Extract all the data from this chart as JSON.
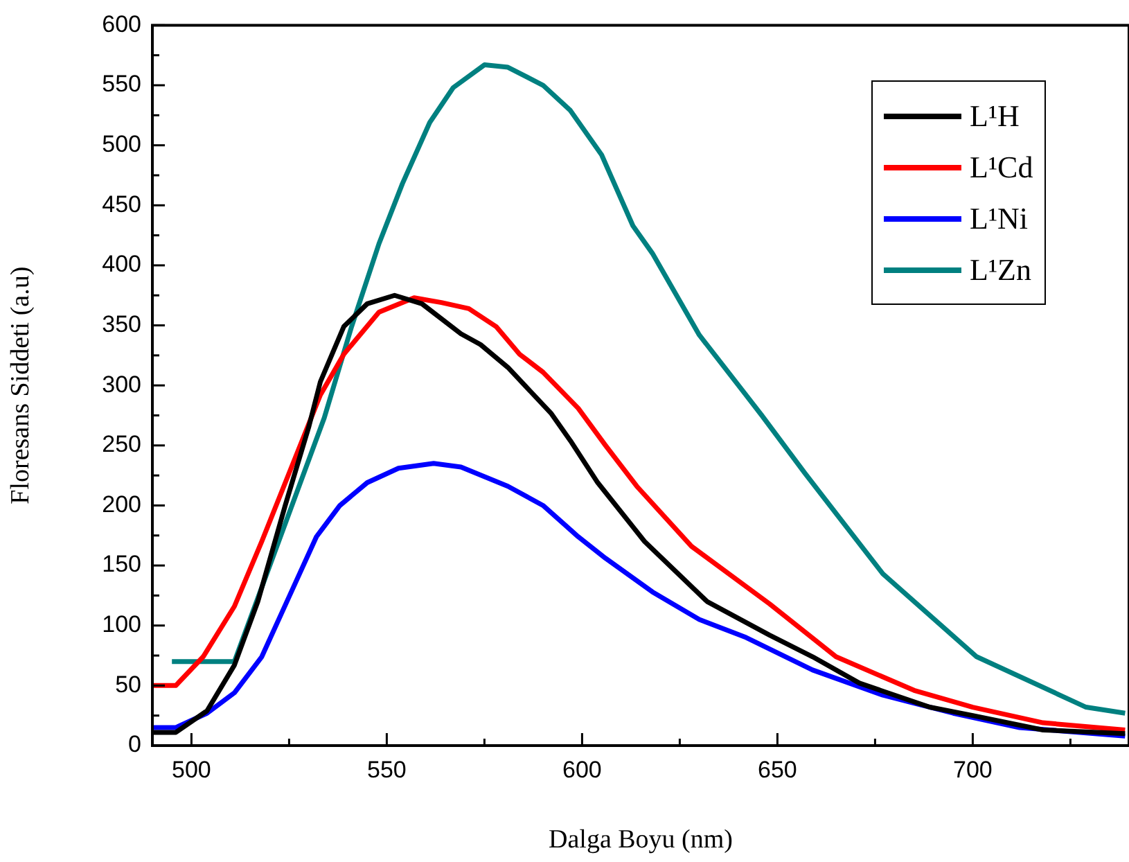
{
  "chart_data": {
    "type": "line",
    "xlabel": "Dalga Boyu (nm)",
    "ylabel": "Floresans Siddeti (a.u)",
    "xlim": [
      490,
      740
    ],
    "ylim": [
      0,
      600
    ],
    "xticks": [
      500,
      {
        "value": 525,
        "label": null
      },
      550,
      {
        "value": 575,
        "label": null
      },
      600,
      {
        "value": 625,
        "label": null
      },
      650,
      {
        "value": 675,
        "label": null
      },
      700,
      {
        "value": 725,
        "label": null
      }
    ],
    "yticks": [
      0,
      {
        "value": 25,
        "label": null
      },
      50,
      {
        "value": 75,
        "label": null
      },
      100,
      {
        "value": 125,
        "label": null
      },
      150,
      {
        "value": 175,
        "label": null
      },
      200,
      {
        "value": 225,
        "label": null
      },
      250,
      {
        "value": 275,
        "label": null
      },
      300,
      {
        "value": 325,
        "label": null
      },
      350,
      {
        "value": 375,
        "label": null
      },
      400,
      {
        "value": 425,
        "label": null
      },
      450,
      {
        "value": 475,
        "label": null
      },
      500,
      {
        "value": 525,
        "label": null
      },
      550,
      {
        "value": 575,
        "label": null
      },
      600
    ],
    "grid": false,
    "legend": "top right",
    "marker": "none",
    "line_style": "solid",
    "series": [
      {
        "name": "L¹H",
        "color": "#000000",
        "x": [
          490,
          496,
          504,
          511,
          517,
          524,
          530,
          533,
          539,
          545,
          552,
          559,
          569,
          574,
          581,
          592,
          597,
          604,
          616,
          632,
          648,
          659,
          671,
          689,
          700,
          718,
          739
        ],
        "values": [
          11,
          11,
          29,
          67,
          120,
          200,
          265,
          303,
          349,
          368,
          375,
          368,
          343,
          334,
          315,
          277,
          254,
          219,
          170,
          120,
          92,
          74,
          52,
          32,
          25,
          13,
          10
        ]
      },
      {
        "name": "L¹Cd",
        "color": "#ff0000",
        "x": [
          490,
          496,
          503,
          511,
          518,
          525,
          533,
          539,
          548,
          557,
          564,
          571,
          578,
          584,
          590,
          599,
          606,
          614,
          628,
          648,
          665,
          685,
          700,
          718,
          739
        ],
        "values": [
          50,
          50,
          74,
          116,
          170,
          227,
          292,
          326,
          361,
          373,
          369,
          364,
          349,
          326,
          311,
          281,
          250,
          216,
          166,
          118,
          74,
          46,
          32,
          19,
          13
        ]
      },
      {
        "name": "L¹Ni",
        "color": "#0000ff",
        "x": [
          490,
          496,
          504,
          511,
          518,
          525,
          532,
          538,
          545,
          553,
          562,
          569,
          581,
          590,
          599,
          606,
          618,
          630,
          642,
          659,
          677,
          695,
          712,
          739
        ],
        "values": [
          15,
          15,
          27,
          44,
          74,
          124,
          174,
          200,
          219,
          231,
          235,
          232,
          216,
          200,
          174,
          156,
          128,
          105,
          90,
          63,
          42,
          27,
          15,
          8
        ]
      },
      {
        "name": "L¹Zn",
        "color": "#008080",
        "x": [
          495,
          511,
          534,
          541,
          548,
          554,
          561,
          567,
          575,
          581,
          590,
          597,
          605,
          613,
          618,
          630,
          641,
          646,
          657,
          677,
          701,
          729,
          739
        ],
        "values": [
          70,
          70,
          273,
          349,
          418,
          468,
          519,
          548,
          567,
          565,
          550,
          529,
          492,
          433,
          410,
          342,
          296,
          275,
          227,
          143,
          74,
          32,
          27
        ]
      }
    ]
  }
}
